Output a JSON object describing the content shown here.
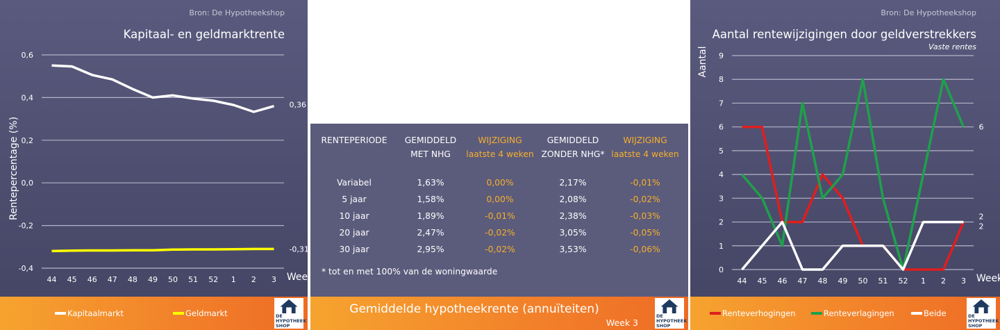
{
  "left": {
    "source": "Bron: De Hypotheekshop",
    "chart_data": {
      "type": "line",
      "title": "Kapitaal- en geldmarktrente",
      "xlabel": "Week",
      "ylabel": "Rentepercentage (%)",
      "categories": [
        "44",
        "45",
        "46",
        "47",
        "48",
        "49",
        "50",
        "51",
        "52",
        "1",
        "2",
        "3"
      ],
      "ylim": [
        -0.4,
        0.6
      ],
      "yticks": [
        "0,6",
        "0,4",
        "0,2",
        "0,0",
        "-0,2",
        "-0,4"
      ],
      "grid": true,
      "legend": "bottom",
      "series": [
        {
          "name": "Kapitaalmarkt",
          "color": "#ffffff",
          "values": [
            0.55,
            0.546,
            0.506,
            0.485,
            0.44,
            0.4,
            0.41,
            0.395,
            0.385,
            0.365,
            0.333,
            0.36
          ],
          "end_label": "0,36"
        },
        {
          "name": "Geldmarkt",
          "color": "#ffff00",
          "values": [
            -0.32,
            -0.318,
            -0.317,
            -0.317,
            -0.316,
            -0.316,
            -0.313,
            -0.312,
            -0.312,
            -0.311,
            -0.31,
            -0.31
          ],
          "end_label": "-0,31"
        }
      ]
    }
  },
  "middle": {
    "headers": [
      {
        "l1": "RENTEPERIODE",
        "l2": ""
      },
      {
        "l1": "GEMIDDELD",
        "l2": "MET NHG"
      },
      {
        "l1": "WIJZIGING",
        "l2": "laatste 4 weken"
      },
      {
        "l1": "GEMIDDELD",
        "l2": "ZONDER NHG*"
      },
      {
        "l1": "WIJZIGING",
        "l2": "laatste 4 weken"
      }
    ],
    "rows": [
      [
        "Variabel",
        "1,63%",
        "0,00%",
        "2,17%",
        "-0,01%"
      ],
      [
        "5 jaar",
        "1,58%",
        "0,00%",
        "2,08%",
        "-0,02%"
      ],
      [
        "10 jaar",
        "1,89%",
        "-0,01%",
        "2,38%",
        "-0,03%"
      ],
      [
        "20 jaar",
        "2,47%",
        "-0,02%",
        "3,05%",
        "-0,05%"
      ],
      [
        "30 jaar",
        "2,95%",
        "-0,02%",
        "3,53%",
        "-0,06%"
      ]
    ],
    "footnote": "* tot en met 100% van de woningwaarde",
    "footer_title": "Gemiddelde hypotheekrente (annuïteiten)",
    "footer_week": "Week 3",
    "accent": "#f6b02c"
  },
  "right": {
    "source": "Bron: De Hypotheekshop",
    "chart_data": {
      "type": "line",
      "title": "Aantal rentewijzigingen door geldverstrekkers",
      "subtitle": "Vaste rentes",
      "xlabel": "Week",
      "ylabel": "Aantal",
      "categories": [
        "44",
        "45",
        "46",
        "47",
        "48",
        "49",
        "50",
        "51",
        "52",
        "1",
        "2",
        "3"
      ],
      "ylim": [
        0,
        9
      ],
      "yticks": [
        "0",
        "1",
        "2",
        "3",
        "4",
        "5",
        "6",
        "7",
        "8",
        "9"
      ],
      "grid": true,
      "legend": "bottom",
      "series": [
        {
          "name": "Renteverhogingen",
          "color": "#e01e1e",
          "values": [
            6,
            6,
            2,
            2,
            4,
            3,
            1,
            1,
            0,
            0,
            0,
            2
          ],
          "end_label": "2"
        },
        {
          "name": "Renteverlagingen",
          "color": "#1fa04b",
          "values": [
            4,
            3,
            1,
            7,
            3,
            4,
            8,
            3,
            0,
            4,
            8,
            6
          ],
          "end_label": "6"
        },
        {
          "name": "Beide",
          "color": "#ffffff",
          "values": [
            0,
            1,
            2,
            0,
            0,
            1,
            1,
            1,
            0,
            2,
            2,
            2
          ],
          "end_label": "2"
        }
      ]
    }
  },
  "logo": {
    "line1": "DE",
    "line2": "HYPOTHEEK",
    "line3": "SHOP"
  }
}
